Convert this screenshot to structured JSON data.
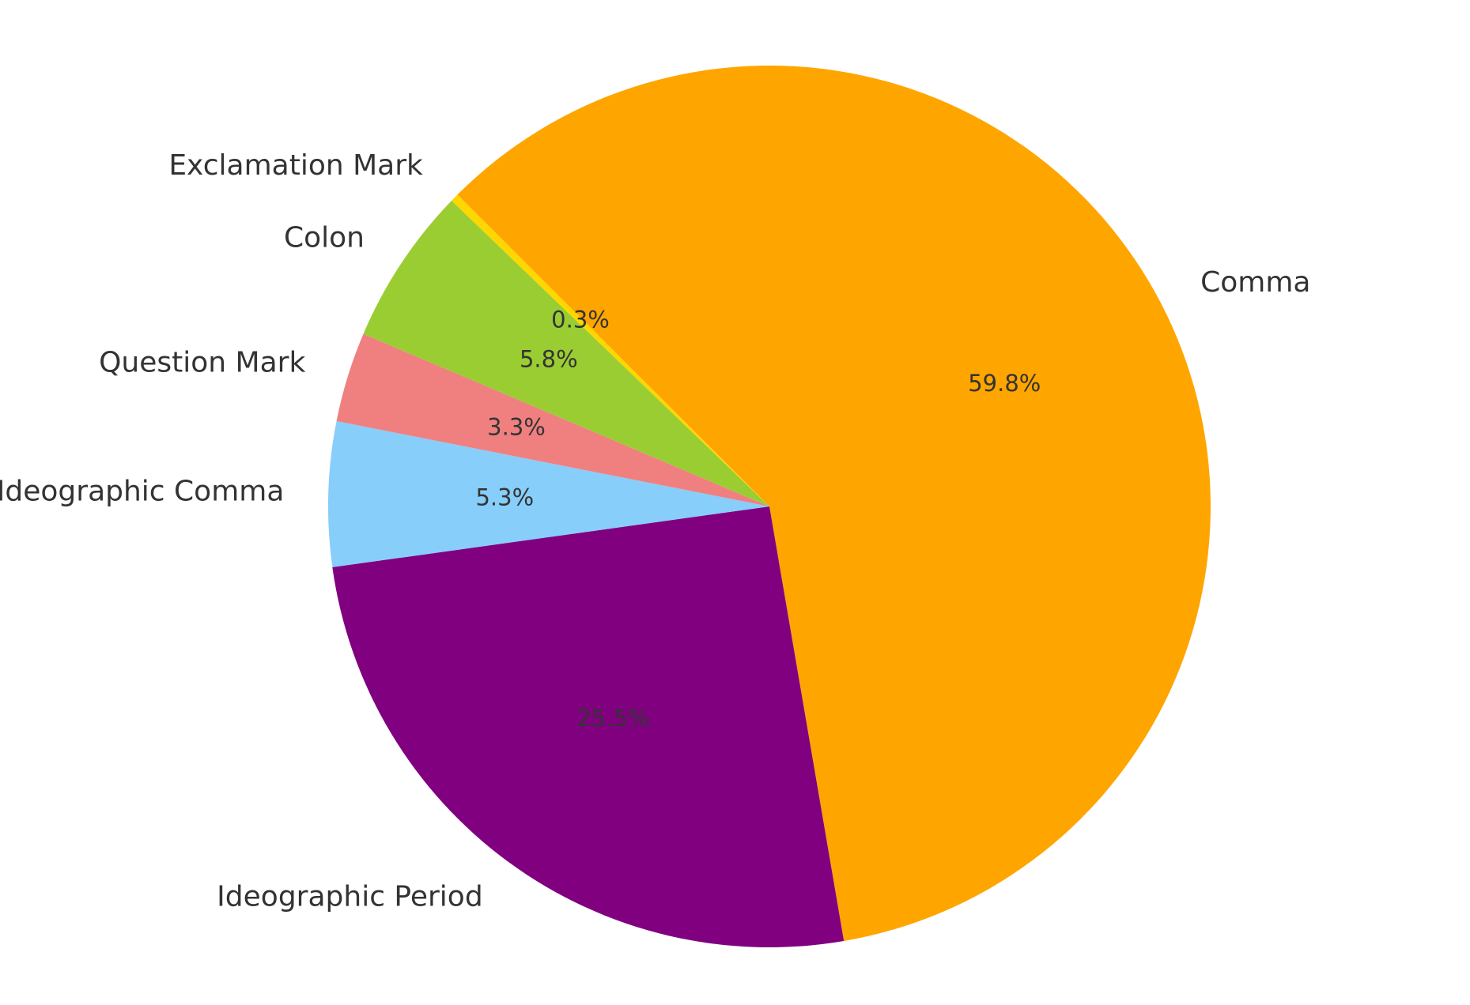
{
  "chart_data": {
    "type": "pie",
    "title": "",
    "start_angle_deg": 135,
    "direction": "clockwise",
    "slices": [
      {
        "label": "Comma",
        "value": 59.8,
        "pct_label": "59.8%",
        "color": "#FFA500"
      },
      {
        "label": "Ideographic Period",
        "value": 25.5,
        "pct_label": "25.5%",
        "color": "#800080"
      },
      {
        "label": "Ideographic Comma",
        "value": 5.3,
        "pct_label": "5.3%",
        "color": "#87CEFA"
      },
      {
        "label": "Question Mark",
        "value": 3.3,
        "pct_label": "3.3%",
        "color": "#F08080"
      },
      {
        "label": "Colon",
        "value": 5.8,
        "pct_label": "5.8%",
        "color": "#9ACD32"
      },
      {
        "label": "Exclamation Mark",
        "value": 0.3,
        "pct_label": "0.3%",
        "color": "#FFD700"
      }
    ]
  }
}
